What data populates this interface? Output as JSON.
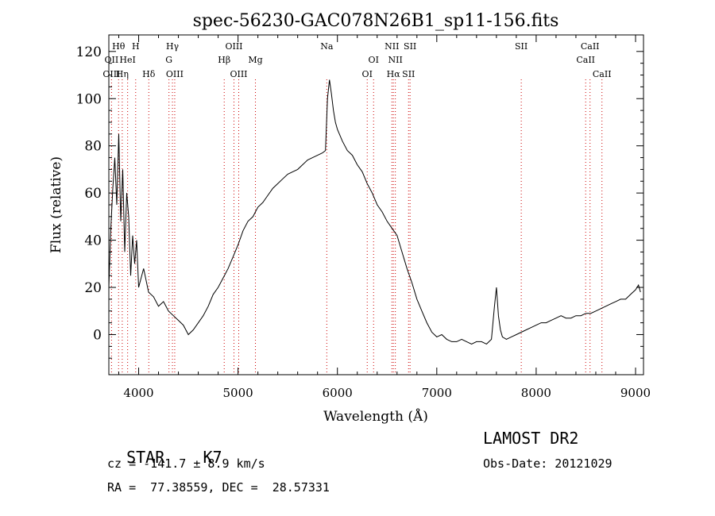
{
  "chart_data": {
    "type": "line",
    "title": "spec-56230-GAC078N26B1_sp11-156.fits",
    "xlabel": "Wavelength (Å)",
    "ylabel": "Flux (relative)",
    "xlim": [
      3700,
      9080
    ],
    "ylim": [
      -17,
      127
    ],
    "x_ticks": [
      4000,
      5000,
      6000,
      7000,
      8000,
      9000
    ],
    "y_ticks": [
      0,
      20,
      40,
      60,
      80,
      100,
      120
    ],
    "grid": false,
    "line_color": "#000000",
    "marker_color": "#cc0000",
    "spectrum": {
      "x": [
        3700,
        3720,
        3740,
        3760,
        3780,
        3800,
        3820,
        3840,
        3860,
        3880,
        3900,
        3920,
        3940,
        3960,
        3980,
        4000,
        4050,
        4100,
        4150,
        4200,
        4250,
        4300,
        4350,
        4400,
        4450,
        4500,
        4550,
        4600,
        4650,
        4700,
        4750,
        4800,
        4850,
        4900,
        4950,
        5000,
        5050,
        5100,
        5150,
        5200,
        5250,
        5300,
        5350,
        5400,
        5450,
        5500,
        5550,
        5600,
        5650,
        5700,
        5750,
        5800,
        5850,
        5880,
        5900,
        5920,
        5940,
        5960,
        5980,
        6000,
        6050,
        6100,
        6150,
        6200,
        6250,
        6300,
        6350,
        6400,
        6450,
        6500,
        6550,
        6600,
        6650,
        6700,
        6750,
        6800,
        6850,
        6900,
        6950,
        7000,
        7050,
        7100,
        7150,
        7200,
        7250,
        7300,
        7350,
        7400,
        7450,
        7500,
        7550,
        7580,
        7600,
        7620,
        7640,
        7660,
        7700,
        7750,
        7800,
        7850,
        7900,
        7950,
        8000,
        8050,
        8100,
        8150,
        8200,
        8250,
        8300,
        8350,
        8400,
        8450,
        8500,
        8550,
        8600,
        8650,
        8700,
        8750,
        8800,
        8850,
        8900,
        8950,
        9000,
        9030,
        9050
      ],
      "y": [
        20,
        45,
        62,
        75,
        55,
        85,
        48,
        70,
        35,
        60,
        50,
        25,
        42,
        30,
        40,
        20,
        28,
        18,
        16,
        12,
        14,
        10,
        8,
        6,
        4,
        0,
        2,
        5,
        8,
        12,
        17,
        20,
        24,
        28,
        33,
        38,
        44,
        48,
        50,
        54,
        56,
        59,
        62,
        64,
        66,
        68,
        69,
        70,
        72,
        74,
        75,
        76,
        77,
        78,
        100,
        108,
        102,
        95,
        90,
        87,
        82,
        78,
        76,
        72,
        69,
        64,
        60,
        55,
        52,
        48,
        45,
        42,
        35,
        28,
        22,
        15,
        10,
        5,
        1,
        -1,
        0,
        -2,
        -3,
        -3,
        -2,
        -3,
        -4,
        -3,
        -3,
        -4,
        -2,
        12,
        20,
        8,
        2,
        -1,
        -2,
        -1,
        0,
        1,
        2,
        3,
        4,
        5,
        5,
        6,
        7,
        8,
        7,
        7,
        8,
        8,
        9,
        9,
        10,
        11,
        12,
        13,
        14,
        15,
        15,
        17,
        19,
        21,
        18
      ]
    },
    "line_markers_top": [
      {
        "label": "Hθ",
        "x": 3798,
        "row": 0
      },
      {
        "label": "OII",
        "x": 3727,
        "row": 1
      },
      {
        "label": "OIII",
        "x": 3727,
        "row": 2
      },
      {
        "label": "H",
        "x": 3970,
        "row": 0
      },
      {
        "label": "HeI",
        "x": 3889,
        "row": 1
      },
      {
        "label": "Hη",
        "x": 3835,
        "row": 2
      },
      {
        "label": "Hδ",
        "x": 4102,
        "row": 2
      },
      {
        "label": "Hγ",
        "x": 4340,
        "row": 0
      },
      {
        "label": "G",
        "x": 4305,
        "row": 1
      },
      {
        "label": "OIII",
        "x": 4363,
        "row": 2
      },
      {
        "label": "Hβ",
        "x": 4861,
        "row": 1
      },
      {
        "label": "OIII",
        "x": 4959,
        "row": 0
      },
      {
        "label": "OIII",
        "x": 5007,
        "row": 2
      },
      {
        "label": "Mg",
        "x": 5175,
        "row": 1
      },
      {
        "label": "Na",
        "x": 5893,
        "row": 0
      },
      {
        "label": "OI",
        "x": 6300,
        "row": 2
      },
      {
        "label": "OI",
        "x": 6364,
        "row": 1
      },
      {
        "label": "NII",
        "x": 6548,
        "row": 0
      },
      {
        "label": "NII",
        "x": 6583,
        "row": 1
      },
      {
        "label": "Hα",
        "x": 6563,
        "row": 2
      },
      {
        "label": "SII",
        "x": 6716,
        "row": 2
      },
      {
        "label": "SII",
        "x": 6731,
        "row": 0
      },
      {
        "label": "SII",
        "x": 7850,
        "row": 0
      },
      {
        "label": "CaII",
        "x": 8498,
        "row": 1
      },
      {
        "label": "CaII",
        "x": 8542,
        "row": 0
      },
      {
        "label": "CaII",
        "x": 8662,
        "row": 2
      }
    ],
    "line_markers_x": [
      3727,
      3798,
      3835,
      3889,
      3970,
      4102,
      4305,
      4340,
      4363,
      4861,
      4959,
      5007,
      5175,
      5893,
      6300,
      6364,
      6548,
      6563,
      6583,
      6716,
      6731,
      7850,
      8498,
      8542,
      8662
    ]
  },
  "info": {
    "object_label": "STAR",
    "subclass": "K7",
    "survey": "LAMOST DR2",
    "cz_text": "cz = -141.7 ± 8.9 km/s",
    "obs_date_text": "Obs-Date: 20121029",
    "coords_text": "RA =  77.38559, DEC =  28.57331"
  }
}
